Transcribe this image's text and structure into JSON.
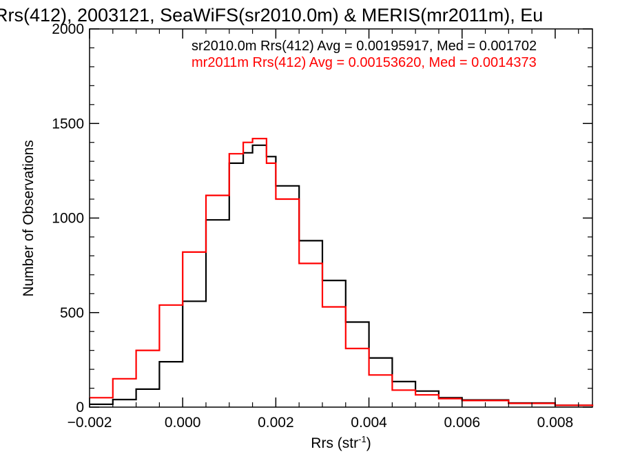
{
  "chart_data": {
    "type": "line",
    "title": "Rrs(412), 2003121, SeaWiFS(sr2010.0m) & MERIS(mr2011m), Eu",
    "xlabel": "Rrs (str",
    "xlabel_sup": "-1",
    "xlabel_close": ")",
    "ylabel": "Number of Observations",
    "xlim": [
      -0.002,
      0.0088
    ],
    "ylim": [
      0,
      2000
    ],
    "xticks": [
      -0.002,
      0.0,
      0.002,
      0.004,
      0.006,
      0.008
    ],
    "xtick_labels": [
      "−0.002",
      "0.000",
      "0.002",
      "0.004",
      "0.006",
      "0.008"
    ],
    "yticks": [
      0,
      500,
      1000,
      1500,
      2000
    ],
    "ytick_labels": [
      "0",
      "500",
      "1000",
      "1500",
      "2000"
    ],
    "grid": false,
    "legend_position": "top-right",
    "x": [
      -0.002,
      -0.0015,
      -0.001,
      -0.0005,
      0.0,
      0.0005,
      0.001,
      0.0013,
      0.0015,
      0.0018,
      0.002,
      0.0025,
      0.003,
      0.0035,
      0.004,
      0.0045,
      0.005,
      0.0055,
      0.006,
      0.007,
      0.008,
      0.0088
    ],
    "series": [
      {
        "name": "sr2010.0m",
        "label": "sr2010.0m Rrs(412) Avg = 0.00195917, Med = 0.001702",
        "color": "#000000",
        "values": [
          15,
          40,
          95,
          240,
          560,
          990,
          1290,
          1345,
          1385,
          1325,
          1170,
          880,
          670,
          450,
          260,
          135,
          85,
          50,
          38,
          22,
          10,
          5
        ]
      },
      {
        "name": "mr2011m",
        "label": "mr2011m Rrs(412) Avg = 0.00153620, Med = 0.0014373",
        "color": "#ff0000",
        "values": [
          50,
          150,
          300,
          540,
          820,
          1120,
          1340,
          1400,
          1420,
          1290,
          1100,
          760,
          530,
          310,
          170,
          90,
          65,
          45,
          35,
          20,
          10,
          5
        ]
      }
    ]
  }
}
